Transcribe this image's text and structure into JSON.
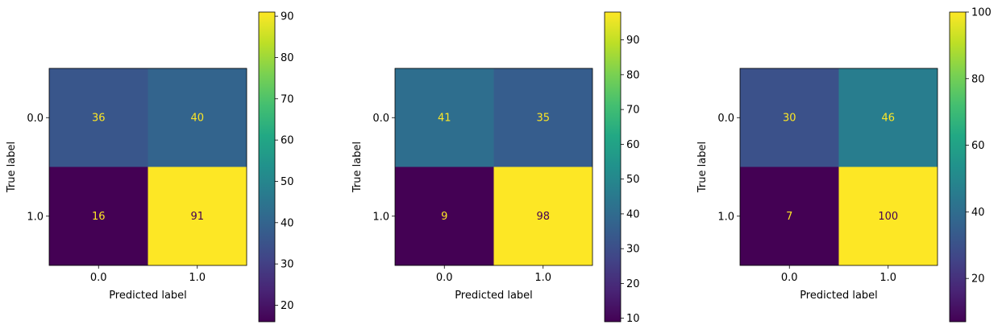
{
  "chart_data": [
    {
      "type": "heatmap",
      "x_label": "Predicted label",
      "y_label": "True label",
      "x_ticks": [
        "0.0",
        "1.0"
      ],
      "y_ticks": [
        "0.0",
        "1.0"
      ],
      "matrix": [
        [
          36,
          40
        ],
        [
          16,
          91
        ]
      ],
      "colormap": "viridis",
      "colorbar": {
        "vmin": 16,
        "vmax": 91,
        "ticks": [
          20,
          30,
          40,
          50,
          60,
          70,
          80,
          90
        ]
      }
    },
    {
      "type": "heatmap",
      "x_label": "Predicted label",
      "y_label": "True label",
      "x_ticks": [
        "0.0",
        "1.0"
      ],
      "y_ticks": [
        "0.0",
        "1.0"
      ],
      "matrix": [
        [
          41,
          35
        ],
        [
          9,
          98
        ]
      ],
      "colormap": "viridis",
      "colorbar": {
        "vmin": 9,
        "vmax": 98,
        "ticks": [
          10,
          20,
          30,
          40,
          50,
          60,
          70,
          80,
          90
        ]
      }
    },
    {
      "type": "heatmap",
      "x_label": "Predicted label",
      "y_label": "True label",
      "x_ticks": [
        "0.0",
        "1.0"
      ],
      "y_ticks": [
        "0.0",
        "1.0"
      ],
      "matrix": [
        [
          30,
          46
        ],
        [
          7,
          100
        ]
      ],
      "colormap": "viridis",
      "colorbar": {
        "vmin": 7,
        "vmax": 100,
        "ticks": [
          20,
          40,
          60,
          80,
          100
        ]
      }
    }
  ],
  "colors": {
    "text_on_dark": "#fde725",
    "text_on_light": "#440154"
  }
}
